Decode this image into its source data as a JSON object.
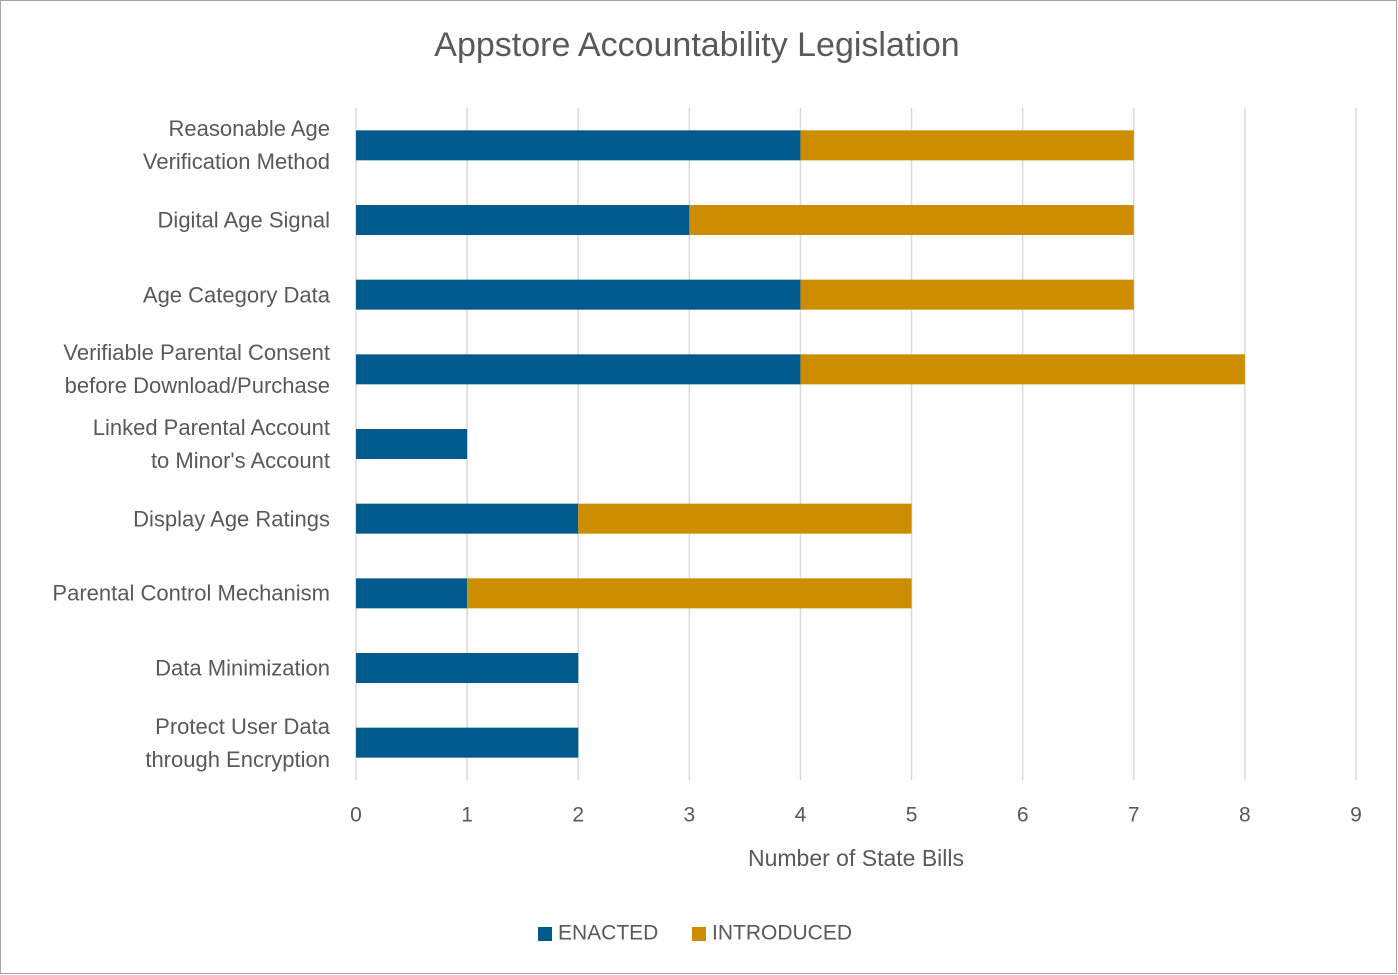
{
  "chart_data": {
    "type": "stacked_bar_horizontal",
    "title": "Appstore Accountability Legislation",
    "x_label": "Number of State Bills",
    "categories": [
      "Reasonable Age\nVerification Method",
      "Digital Age Signal",
      "Age Category Data",
      "Verifiable Parental Consent\nbefore Download/Purchase",
      "Linked Parental Account\nto Minor's Account",
      "Display Age Ratings",
      "Parental Control Mechanism",
      "Data Minimization",
      "Protect User Data\nthrough Encryption"
    ],
    "series": [
      {
        "name": "ENACTED",
        "color": "#005b8c",
        "values": [
          4,
          3,
          4,
          4,
          1,
          2,
          1,
          2,
          2
        ]
      },
      {
        "name": "INTRODUCED",
        "color": "#cc8e00",
        "values": [
          3,
          4,
          3,
          4,
          0,
          3,
          4,
          0,
          0
        ]
      }
    ],
    "xlim": [
      0,
      9
    ],
    "xticks": [
      0,
      1,
      2,
      3,
      4,
      5,
      6,
      7,
      8,
      9
    ],
    "grid": true,
    "legend": "bottom"
  }
}
